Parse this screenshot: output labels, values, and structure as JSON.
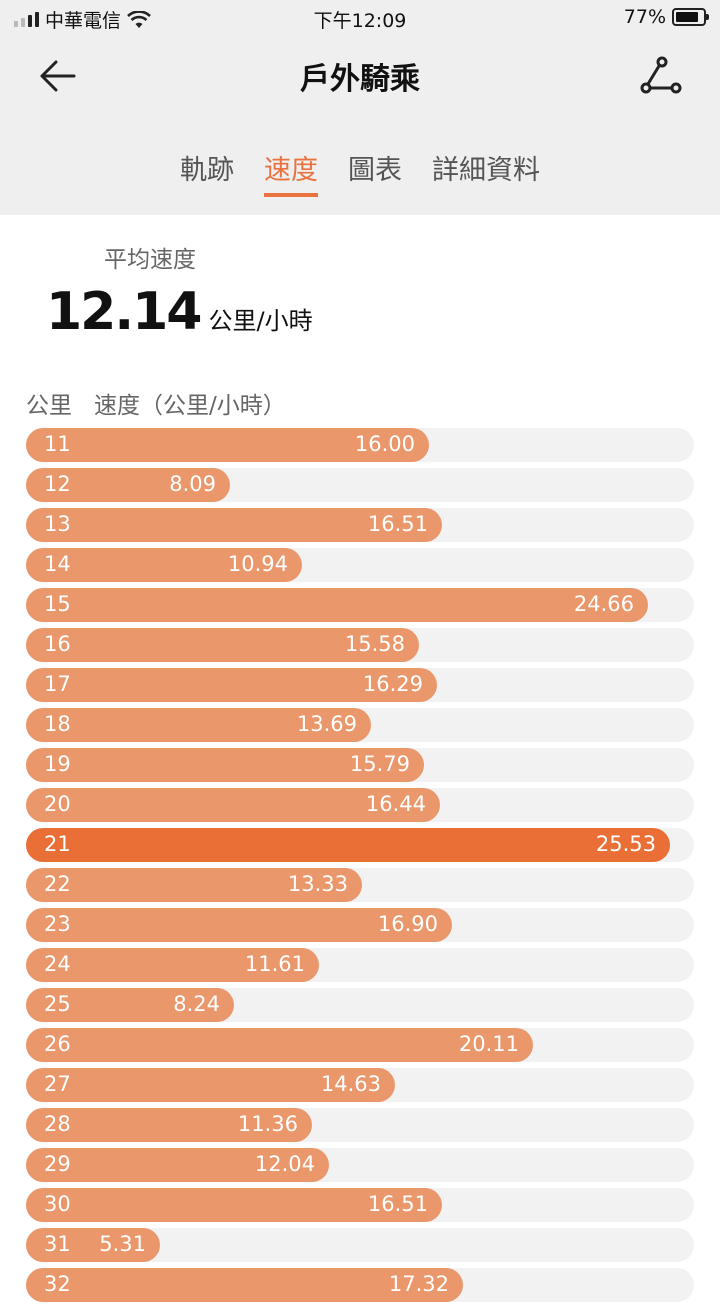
{
  "status": {
    "carrier": "中華電信",
    "time": "下午12:09",
    "battery": "77%"
  },
  "nav": {
    "title": "戶外騎乘"
  },
  "tabs": [
    {
      "label": "軌跡",
      "active": false
    },
    {
      "label": "速度",
      "active": true
    },
    {
      "label": "圖表",
      "active": false
    },
    {
      "label": "詳細資料",
      "active": false
    }
  ],
  "summary": {
    "avg_label": "平均速度",
    "avg_value": "12.14",
    "avg_unit": "公里/小時"
  },
  "table": {
    "col_km": "公里",
    "col_speed": "速度（公里/小時）",
    "max_scale": 26.5,
    "rows": [
      {
        "km": "11",
        "speed": "16.00",
        "value": 16.0
      },
      {
        "km": "12",
        "speed": "8.09",
        "value": 8.09
      },
      {
        "km": "13",
        "speed": "16.51",
        "value": 16.51
      },
      {
        "km": "14",
        "speed": "10.94",
        "value": 10.94
      },
      {
        "km": "15",
        "speed": "24.66",
        "value": 24.66
      },
      {
        "km": "16",
        "speed": "15.58",
        "value": 15.58
      },
      {
        "km": "17",
        "speed": "16.29",
        "value": 16.29
      },
      {
        "km": "18",
        "speed": "13.69",
        "value": 13.69
      },
      {
        "km": "19",
        "speed": "15.79",
        "value": 15.79
      },
      {
        "km": "20",
        "speed": "16.44",
        "value": 16.44
      },
      {
        "km": "21",
        "speed": "25.53",
        "value": 25.53,
        "highlight": true
      },
      {
        "km": "22",
        "speed": "13.33",
        "value": 13.33
      },
      {
        "km": "23",
        "speed": "16.90",
        "value": 16.9
      },
      {
        "km": "24",
        "speed": "11.61",
        "value": 11.61
      },
      {
        "km": "25",
        "speed": "8.24",
        "value": 8.24
      },
      {
        "km": "26",
        "speed": "20.11",
        "value": 20.11
      },
      {
        "km": "27",
        "speed": "14.63",
        "value": 14.63
      },
      {
        "km": "28",
        "speed": "11.36",
        "value": 11.36
      },
      {
        "km": "29",
        "speed": "12.04",
        "value": 12.04
      },
      {
        "km": "30",
        "speed": "16.51",
        "value": 16.51
      },
      {
        "km": "31",
        "speed": "5.31",
        "value": 5.31
      },
      {
        "km": "32",
        "speed": "17.32",
        "value": 17.32
      }
    ]
  },
  "colors": {
    "accent": "#e8733f",
    "bar": "#ea976b",
    "bar_highlight": "#ea6f37",
    "track": "#f2f2f2"
  }
}
